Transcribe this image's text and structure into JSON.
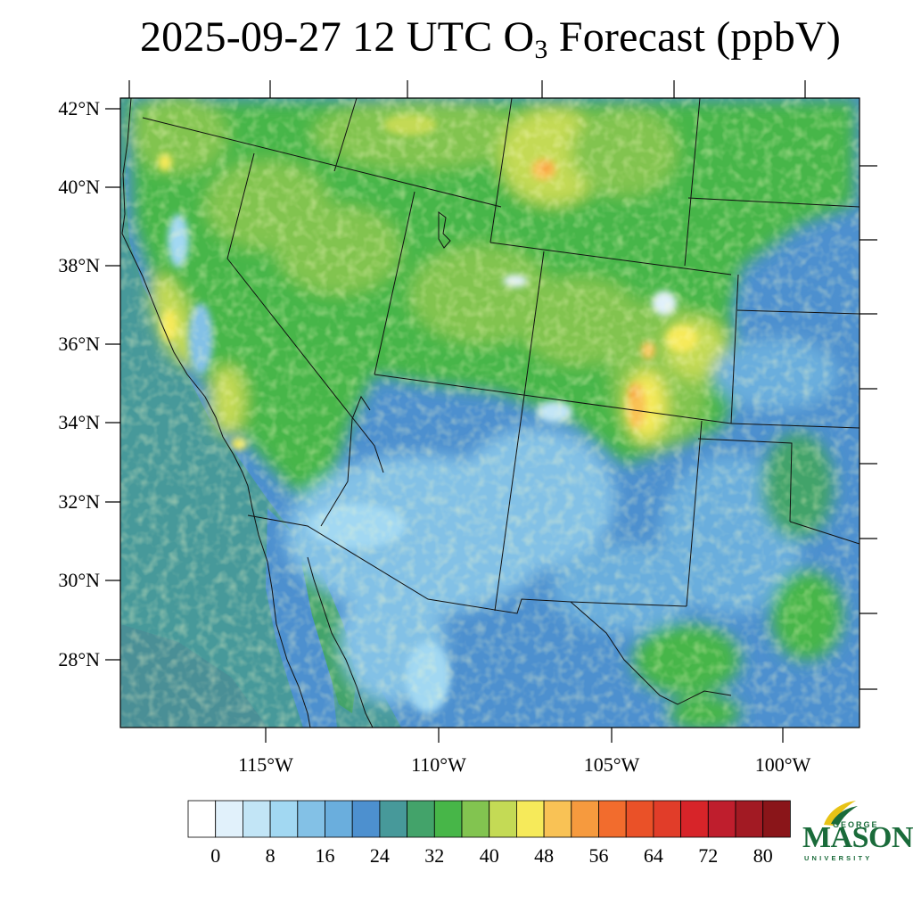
{
  "title": {
    "prefix": "2025-09-27 12 UTC O",
    "subscript": "3",
    "suffix": " Forecast (ppbV)"
  },
  "map": {
    "lat_labels": [
      "42°N",
      "40°N",
      "38°N",
      "36°N",
      "34°N",
      "32°N",
      "30°N",
      "28°N"
    ],
    "lon_labels": [
      "115°W",
      "110°W",
      "105°W",
      "100°W"
    ],
    "lat_range": [
      26.5,
      42.3
    ],
    "lon_range": [
      -119.5,
      -97.8
    ]
  },
  "colorbar": {
    "labels": [
      "0",
      "8",
      "16",
      "24",
      "32",
      "40",
      "48",
      "56",
      "64",
      "72",
      "80"
    ],
    "colors": [
      "#ffffff",
      "#e1f1fb",
      "#c2e5f6",
      "#a2d8f2",
      "#83c1e6",
      "#6aaedd",
      "#4d90cf",
      "#47999a",
      "#43a36a",
      "#47b648",
      "#82c450",
      "#c4da55",
      "#f6ea5a",
      "#f9c255",
      "#f69a3e",
      "#f26c2d",
      "#ea5128",
      "#e13d29",
      "#d72429",
      "#bf1e2d",
      "#a21a23",
      "#8a1519"
    ]
  },
  "logo": {
    "line1": "GEORGE",
    "line2": "MASON",
    "line3": "UNIVERSITY",
    "accent": "#1a6b3a",
    "flame": "#e8c316"
  }
}
